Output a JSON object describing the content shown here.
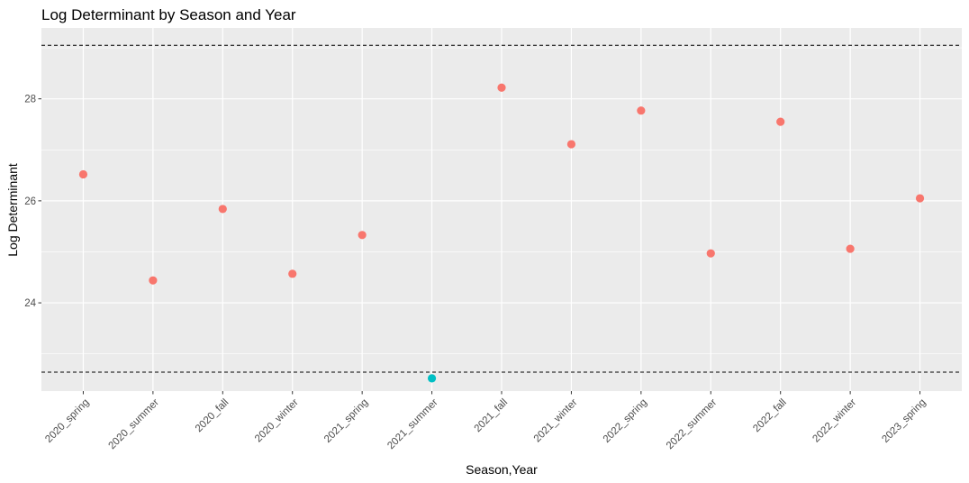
{
  "chart_data": {
    "type": "scatter",
    "title": "Log Determinant by Season and Year",
    "xlabel": "Season,Year",
    "ylabel": "Log Determinant",
    "categories": [
      "2020_spring",
      "2020_summer",
      "2020_fall",
      "2020_winter",
      "2021_spring",
      "2021_summer",
      "2021_fall",
      "2021_winter",
      "2022_spring",
      "2022_summer",
      "2022_fall",
      "2022_winter",
      "2023_spring"
    ],
    "values": [
      26.52,
      24.44,
      25.84,
      24.57,
      25.33,
      22.52,
      28.22,
      27.11,
      27.77,
      24.97,
      27.55,
      25.06,
      26.05
    ],
    "point_groups": [
      "inside",
      "inside",
      "inside",
      "inside",
      "inside",
      "outside",
      "inside",
      "inside",
      "inside",
      "inside",
      "inside",
      "inside",
      "inside"
    ],
    "group_colors": {
      "inside": "#F8766D",
      "outside": "#00BFC4"
    },
    "yticks": [
      24,
      26,
      28
    ],
    "ylim": [
      22.27,
      29.39
    ],
    "reference_lines": [
      29.05,
      22.64
    ],
    "grid": true,
    "legend": "none",
    "colors": {
      "panel": "#EBEBEB",
      "grid": "#FFFFFF",
      "reference_line": "#000000"
    }
  }
}
